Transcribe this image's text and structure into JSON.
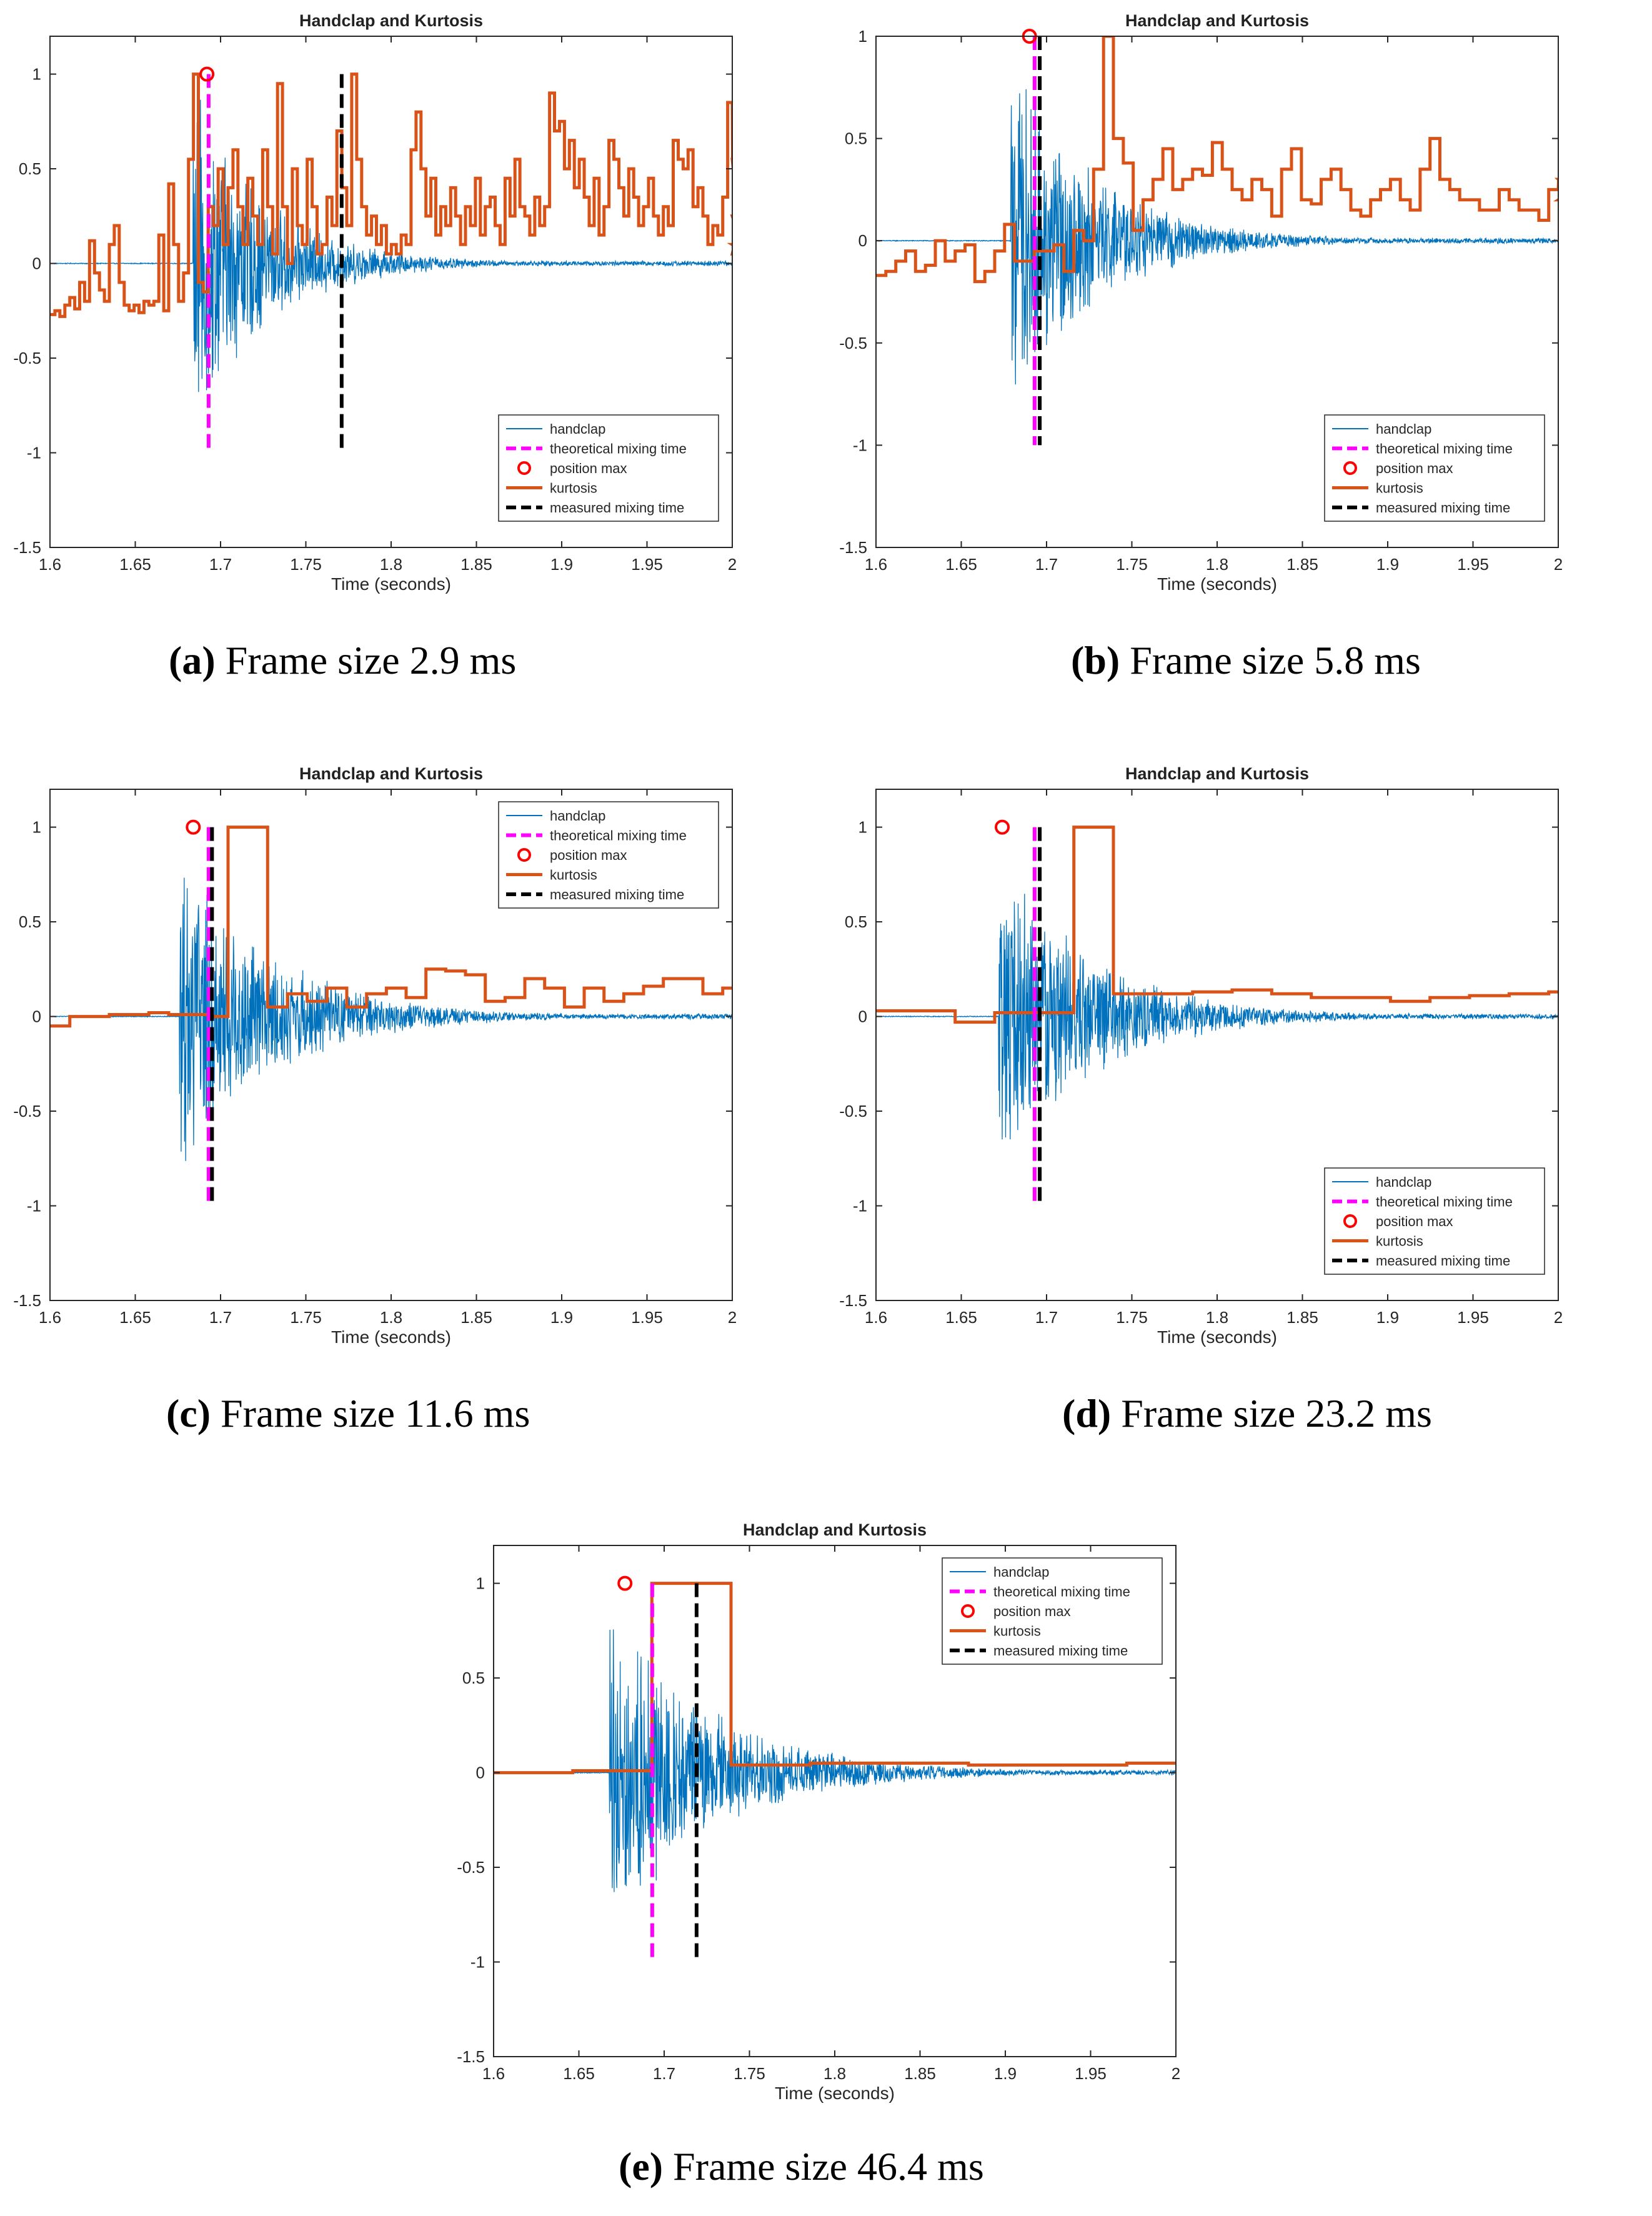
{
  "figure": {
    "panels": [
      {
        "letter": "a",
        "label": "Frame size 2.9 ms"
      },
      {
        "letter": "b",
        "label": "Frame size 5.8 ms"
      },
      {
        "letter": "c",
        "label": "Frame size 11.6 ms"
      },
      {
        "letter": "d",
        "label": "Frame size 23.2 ms"
      },
      {
        "letter": "e",
        "label": "Frame size 46.4 ms"
      }
    ]
  },
  "chart_data": [
    {
      "type": "line",
      "title": "Handclap and Kurtosis",
      "xlabel": "Time (seconds)",
      "ylabel": "",
      "xlim": [
        1.6,
        2.0
      ],
      "ylim": [
        -1.5,
        1.2
      ],
      "xticks": [
        "1.6",
        "1.65",
        "1.7",
        "1.75",
        "1.8",
        "1.85",
        "1.9",
        "1.95",
        "2"
      ],
      "yticks": [
        "-1.5",
        "-1",
        "-0.5",
        "0",
        "0.5",
        "1"
      ],
      "legend_position": "bottom-right",
      "legend": [
        "handclap",
        "theoretical mixing time",
        "position max",
        "kurtosis",
        "measured mixing time"
      ],
      "handclap": {
        "onset": 1.684,
        "peak": 0.95,
        "decay": 0.045
      },
      "theoretical_mixing_time": 1.693,
      "measured_mixing_time": 1.771,
      "position_max": {
        "x": 1.692,
        "y": 1.0
      },
      "kurtosis": {
        "frame_ms": 2.9,
        "values": [
          -0.27,
          -0.25,
          -0.28,
          -0.22,
          -0.18,
          -0.24,
          -0.1,
          -0.2,
          0.12,
          -0.05,
          -0.14,
          -0.2,
          0.1,
          0.2,
          -0.1,
          -0.22,
          -0.25,
          -0.22,
          -0.26,
          -0.2,
          -0.22,
          -0.2,
          0.15,
          -0.25,
          0.42,
          0.1,
          -0.2,
          -0.05,
          0.55,
          1.0,
          -0.1,
          -0.15,
          0.3,
          0.2,
          0.5,
          0.1,
          0.4,
          0.6,
          0.3,
          0.1,
          0.45,
          0.25,
          0.1,
          0.6,
          0.3,
          0.05,
          0.95,
          0.3,
          0.0,
          0.5,
          0.2,
          0.1,
          0.55,
          0.3,
          0.05,
          0.1,
          0.35,
          0.2,
          0.7,
          0.4,
          0.2,
          1.0,
          0.55,
          0.3,
          0.15,
          0.25,
          0.1,
          0.2,
          0.05,
          0.1,
          0.05,
          0.15,
          0.1,
          0.6,
          0.8,
          0.5,
          0.25,
          0.45,
          0.15,
          0.3,
          0.2,
          0.4,
          0.25,
          0.1,
          0.3,
          0.2,
          0.45,
          0.15,
          0.3,
          0.35,
          0.2,
          0.1,
          0.45,
          0.25,
          0.55,
          0.3,
          0.25,
          0.15,
          0.35,
          0.2,
          0.3,
          0.9,
          0.7,
          0.75,
          0.5,
          0.65,
          0.4,
          0.55,
          0.35,
          0.2,
          0.45,
          0.15,
          0.3,
          0.65,
          0.55,
          0.4,
          0.25,
          0.5,
          0.35,
          0.2,
          0.3,
          0.45,
          0.25,
          0.15,
          0.3,
          0.2,
          0.65,
          0.55,
          0.5,
          0.6,
          0.3,
          0.4,
          0.25,
          0.1,
          0.2,
          0.15,
          0.35,
          0.85,
          0.55,
          0.25,
          0.1,
          0.05,
          0.5
        ]
      }
    },
    {
      "type": "line",
      "title": "Handclap and Kurtosis",
      "xlabel": "Time (seconds)",
      "ylabel": "",
      "xlim": [
        1.6,
        2.0
      ],
      "ylim": [
        -1.5,
        1.0
      ],
      "xticks": [
        "1.6",
        "1.65",
        "1.7",
        "1.75",
        "1.8",
        "1.85",
        "1.9",
        "1.95",
        "2"
      ],
      "yticks": [
        "-1.5",
        "-1",
        "-0.5",
        "0",
        "0.5",
        "1"
      ],
      "legend_position": "bottom-right",
      "legend": [
        "handclap",
        "theoretical mixing time",
        "position max",
        "kurtosis",
        "measured mixing time"
      ],
      "handclap": {
        "onset": 1.679,
        "peak": 0.95,
        "decay": 0.05
      },
      "theoretical_mixing_time": 1.693,
      "measured_mixing_time": 1.696,
      "position_max": {
        "x": 1.69,
        "y": 1.0
      },
      "kurtosis": {
        "frame_ms": 5.8,
        "values": [
          -0.17,
          -0.15,
          -0.1,
          -0.05,
          -0.15,
          -0.12,
          0.0,
          -0.1,
          -0.05,
          -0.02,
          -0.2,
          -0.15,
          -0.05,
          0.08,
          -0.1,
          -0.1,
          -0.05,
          -0.05,
          -0.02,
          -0.15,
          0.05,
          0.0,
          0.35,
          1.0,
          0.5,
          0.38,
          0.05,
          0.2,
          0.3,
          0.45,
          0.25,
          0.3,
          0.35,
          0.32,
          0.48,
          0.35,
          0.25,
          0.2,
          0.3,
          0.25,
          0.12,
          0.35,
          0.45,
          0.2,
          0.18,
          0.3,
          0.35,
          0.25,
          0.15,
          0.12,
          0.2,
          0.25,
          0.3,
          0.2,
          0.15,
          0.35,
          0.5,
          0.3,
          0.25,
          0.2,
          0.2,
          0.15,
          0.15,
          0.25,
          0.2,
          0.15,
          0.15,
          0.1,
          0.25,
          0.3,
          0.25,
          0.2,
          0.25,
          0.25,
          0.2,
          0.4,
          0.58,
          0.7
        ]
      }
    },
    {
      "type": "line",
      "title": "Handclap and Kurtosis",
      "xlabel": "Time (seconds)",
      "ylabel": "",
      "xlim": [
        1.6,
        2.0
      ],
      "ylim": [
        -1.5,
        1.2
      ],
      "xticks": [
        "1.6",
        "1.65",
        "1.7",
        "1.75",
        "1.8",
        "1.85",
        "1.9",
        "1.95",
        "2"
      ],
      "yticks": [
        "-1.5",
        "-1",
        "-0.5",
        "0",
        "0.5",
        "1"
      ],
      "legend_position": "top-right",
      "legend": [
        "handclap",
        "theoretical mixing time",
        "position max",
        "kurtosis",
        "measured mixing time"
      ],
      "handclap": {
        "onset": 1.676,
        "peak": 0.95,
        "decay": 0.055
      },
      "theoretical_mixing_time": 1.693,
      "measured_mixing_time": 1.695,
      "position_max": {
        "x": 1.684,
        "y": 1.0
      },
      "kurtosis": {
        "frame_ms": 11.6,
        "values": [
          -0.05,
          0.0,
          0.0,
          0.01,
          0.01,
          0.02,
          0.01,
          0.01,
          0.0,
          1.0,
          1.0,
          0.05,
          0.12,
          0.08,
          0.15,
          0.05,
          0.12,
          0.15,
          0.1,
          0.25,
          0.24,
          0.22,
          0.08,
          0.1,
          0.2,
          0.15,
          0.05,
          0.15,
          0.08,
          0.12,
          0.16,
          0.2,
          0.2,
          0.12,
          0.15,
          0.18,
          0.1,
          0.08,
          0.14,
          0.16,
          0.18,
          0.2,
          0.22,
          0.16
        ]
      }
    },
    {
      "type": "line",
      "title": "Handclap and Kurtosis",
      "xlabel": "Time (seconds)",
      "ylabel": "",
      "xlim": [
        1.6,
        2.0
      ],
      "ylim": [
        -1.5,
        1.2
      ],
      "xticks": [
        "1.6",
        "1.65",
        "1.7",
        "1.75",
        "1.8",
        "1.85",
        "1.9",
        "1.95",
        "2"
      ],
      "yticks": [
        "-1.5",
        "-1",
        "-0.5",
        "0",
        "0.5",
        "1"
      ],
      "legend_position": "bottom-right",
      "legend": [
        "handclap",
        "theoretical mixing time",
        "position max",
        "kurtosis",
        "measured mixing time"
      ],
      "handclap": {
        "onset": 1.672,
        "peak": 0.95,
        "decay": 0.055
      },
      "theoretical_mixing_time": 1.693,
      "measured_mixing_time": 1.696,
      "position_max": {
        "x": 1.674,
        "y": 1.0
      },
      "kurtosis": {
        "frame_ms": 23.2,
        "values": [
          0.03,
          0.03,
          -0.03,
          0.02,
          0.02,
          1.0,
          0.12,
          0.12,
          0.13,
          0.14,
          0.12,
          0.1,
          0.1,
          0.08,
          0.1,
          0.11,
          0.12,
          0.13,
          0.12,
          0.1,
          0.08,
          0.06,
          0.05,
          0.03
        ]
      }
    },
    {
      "type": "line",
      "title": "Handclap and Kurtosis",
      "xlabel": "Time (seconds)",
      "ylabel": "",
      "xlim": [
        1.6,
        2.0
      ],
      "ylim": [
        -1.5,
        1.2
      ],
      "xticks": [
        "1.6",
        "1.65",
        "1.7",
        "1.75",
        "1.8",
        "1.85",
        "1.9",
        "1.95",
        "2"
      ],
      "yticks": [
        "-1.5",
        "-1",
        "-0.5",
        "0",
        "0.5",
        "1"
      ],
      "legend_position": "top-right",
      "legend": [
        "handclap",
        "theoretical mixing time",
        "position max",
        "kurtosis",
        "measured mixing time"
      ],
      "handclap": {
        "onset": 1.668,
        "peak": 0.95,
        "decay": 0.06
      },
      "theoretical_mixing_time": 1.693,
      "measured_mixing_time": 1.719,
      "position_max": {
        "x": 1.677,
        "y": 1.0
      },
      "kurtosis": {
        "frame_ms": 46.4,
        "values": [
          0.0,
          0.01,
          1.0,
          0.04,
          0.05,
          0.05,
          0.04,
          0.04,
          0.05
        ]
      }
    }
  ]
}
